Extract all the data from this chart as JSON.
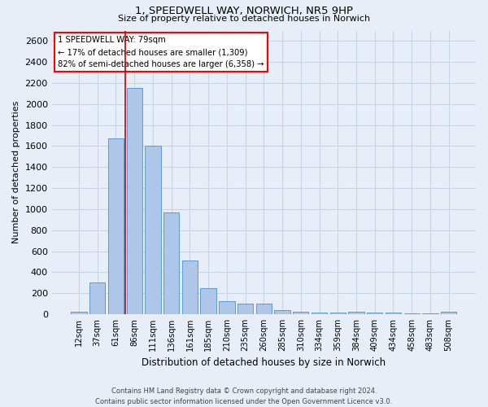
{
  "title1": "1, SPEEDWELL WAY, NORWICH, NR5 9HP",
  "title2": "Size of property relative to detached houses in Norwich",
  "xlabel": "Distribution of detached houses by size in Norwich",
  "ylabel": "Number of detached properties",
  "categories": [
    "12sqm",
    "37sqm",
    "61sqm",
    "86sqm",
    "111sqm",
    "136sqm",
    "161sqm",
    "185sqm",
    "210sqm",
    "235sqm",
    "260sqm",
    "285sqm",
    "310sqm",
    "334sqm",
    "359sqm",
    "384sqm",
    "409sqm",
    "434sqm",
    "458sqm",
    "483sqm",
    "508sqm"
  ],
  "values": [
    20,
    300,
    1670,
    2150,
    1600,
    970,
    510,
    245,
    120,
    100,
    100,
    40,
    20,
    15,
    15,
    20,
    15,
    15,
    5,
    5,
    20
  ],
  "bar_color": "#aec6e8",
  "bar_edge_color": "#5a9bd5",
  "property_line_label": "1 SPEEDWELL WAY: 79sqm",
  "annotation_line1": "← 17% of detached houses are smaller (1,309)",
  "annotation_line2": "82% of semi-detached houses are larger (6,358) →",
  "annotation_box_color": "white",
  "annotation_box_edge_color": "red",
  "red_line_color": "#cc0000",
  "red_line_x": 2.5,
  "ylim": [
    0,
    2700
  ],
  "yticks": [
    0,
    200,
    400,
    600,
    800,
    1000,
    1200,
    1400,
    1600,
    1800,
    2000,
    2200,
    2400,
    2600
  ],
  "grid_color": "#c8d4e8",
  "bg_color": "#e8eef8",
  "footer1": "Contains HM Land Registry data © Crown copyright and database right 2024.",
  "footer2": "Contains public sector information licensed under the Open Government Licence v3.0."
}
